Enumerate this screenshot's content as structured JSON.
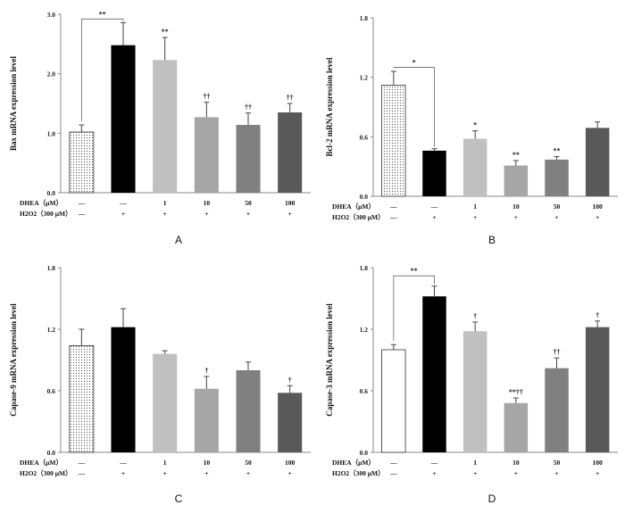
{
  "conditions": {
    "dhea_label": "DHEA（μM）",
    "h2o2_label": "H2O2（300 μM）",
    "dhea_values": [
      "—",
      "—",
      "1",
      "10",
      "50",
      "100"
    ],
    "h2o2_values": [
      "—",
      "+",
      "+",
      "+",
      "+",
      "+"
    ]
  },
  "chart_data": [
    {
      "panel": "A",
      "type": "bar",
      "ylabel": "Bax mRNA expression level",
      "ylim": [
        0,
        3.0
      ],
      "yticks": [
        "0.0",
        "1.0",
        "2.0",
        "3.0"
      ],
      "tickvals": [
        0,
        1,
        2,
        3
      ],
      "values": [
        1.02,
        2.48,
        2.23,
        1.27,
        1.14,
        1.35
      ],
      "errors": [
        0.12,
        0.38,
        0.38,
        0.25,
        0.2,
        0.15
      ],
      "annotations": [
        "",
        "",
        "**",
        "††",
        "††",
        "††"
      ],
      "bracket": {
        "from": 0,
        "to": 1,
        "label": "**",
        "level": 2.92
      }
    },
    {
      "panel": "B",
      "type": "bar",
      "ylabel": "Bcl-2 mRNA expression level",
      "ylim": [
        0,
        1.8
      ],
      "yticks": [
        "0.0",
        "0.6",
        "1.2",
        "1.8"
      ],
      "tickvals": [
        0,
        0.6,
        1.2,
        1.8
      ],
      "values": [
        1.12,
        0.46,
        0.58,
        0.31,
        0.37,
        0.69
      ],
      "errors": [
        0.14,
        0.02,
        0.08,
        0.05,
        0.03,
        0.06
      ],
      "annotations": [
        "",
        "",
        "*",
        "**",
        "**",
        ""
      ],
      "bracket": {
        "from": 0,
        "to": 1,
        "label": "*",
        "level": 1.3
      }
    },
    {
      "panel": "C",
      "type": "bar",
      "ylabel": "Capase-9 mRNA expression level",
      "ylim": [
        0,
        1.8
      ],
      "yticks": [
        "0.0",
        "0.6",
        "1.2",
        "1.8"
      ],
      "tickvals": [
        0,
        0.6,
        1.2,
        1.8
      ],
      "values": [
        1.04,
        1.22,
        0.96,
        0.62,
        0.8,
        0.58
      ],
      "errors": [
        0.16,
        0.18,
        0.03,
        0.12,
        0.08,
        0.07
      ],
      "annotations": [
        "",
        "",
        "",
        "†",
        "",
        "†"
      ],
      "bracket": null
    },
    {
      "panel": "D",
      "type": "bar",
      "ylabel": "Capase-3 mRNA expression level",
      "ylim": [
        0,
        1.8
      ],
      "yticks": [
        "0.0",
        "0.6",
        "1.2",
        "1.8"
      ],
      "tickvals": [
        0,
        0.6,
        1.2,
        1.8
      ],
      "values": [
        1.0,
        1.52,
        1.18,
        0.48,
        0.82,
        1.22
      ],
      "errors": [
        0.05,
        0.1,
        0.09,
        0.05,
        0.1,
        0.06
      ],
      "annotations": [
        "",
        "",
        "†",
        "**††",
        "††",
        "†"
      ],
      "bracket": {
        "from": 0,
        "to": 1,
        "label": "**",
        "level": 1.72
      }
    }
  ],
  "colors": {
    "bar_fills": [
      "dotted",
      "#000000",
      "#c0c0c0",
      "#a6a6a6",
      "#808080",
      "#595959"
    ],
    "panel_d_first_bar": "#ffffff",
    "axis": "#888888",
    "error_bar": "#444444"
  }
}
